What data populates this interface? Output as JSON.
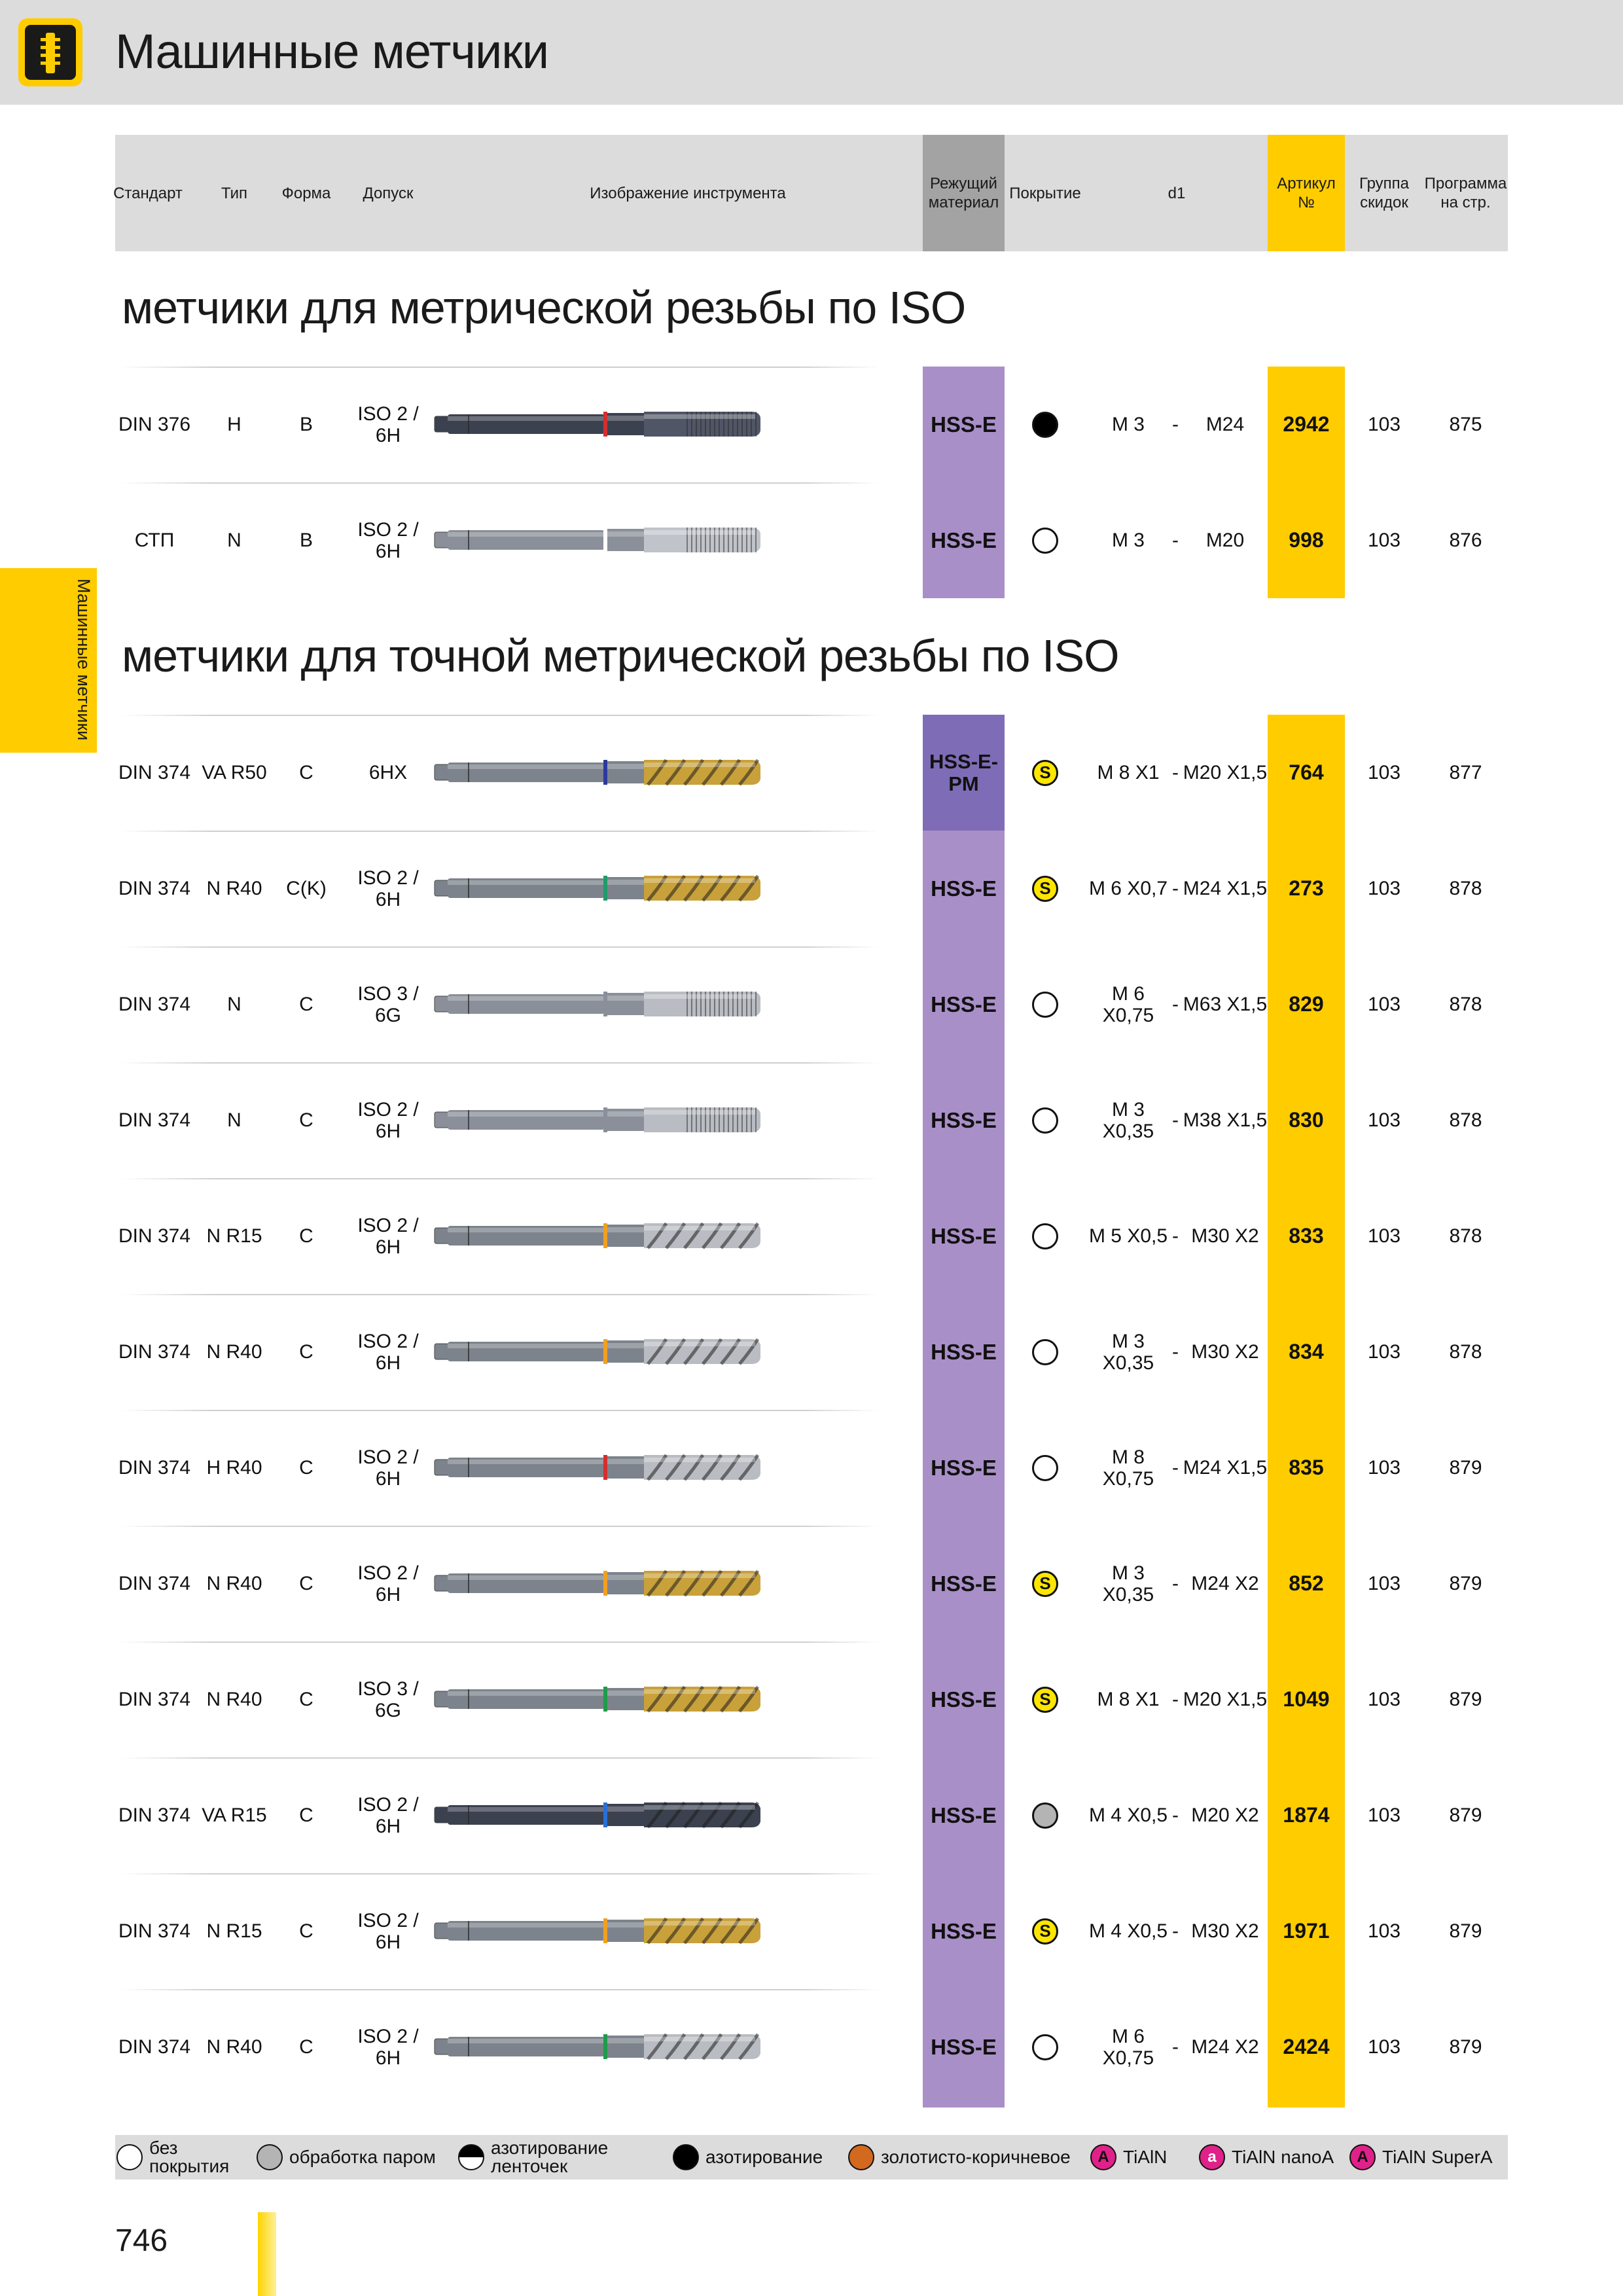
{
  "header": {
    "title": "Машинные метчики"
  },
  "side_tab": {
    "label": "Машинные метчики"
  },
  "table_header": {
    "standard": "Стандарт",
    "type": "Тип",
    "form": "Форма",
    "tolerance": "Допуск",
    "image": "Изображение инструмента",
    "material_1": "Режущий",
    "material_2": "материал",
    "coating": "Покрытие",
    "d1": "d1",
    "article_1": "Артикул",
    "article_2": "№",
    "discount_1": "Группа",
    "discount_2": "скидок",
    "program_1": "Программа",
    "program_2": "на стр."
  },
  "sections": [
    {
      "title": "метчики для метрической резьбы по  ISO"
    },
    {
      "title": "метчики для точной метрической резьбы по  ISO"
    }
  ],
  "rows": [
    {
      "standard": "DIN 376",
      "type": "H",
      "form": "B",
      "tol1": "ISO 2 /",
      "tol2": "6H",
      "material": "HSS-E",
      "coating": "black",
      "coating_letter": "",
      "d1_from": "M 3",
      "d1_from2": "",
      "dash": "-",
      "d1_to": "M24",
      "article": "2942",
      "group": "103",
      "page": "875",
      "tool_body": "#3c4150",
      "tool_ring": "#d32f2f",
      "tool_tip": "#505666",
      "tool_style": "straight"
    },
    {
      "standard": "СТП",
      "type": "N",
      "form": "B",
      "tol1": "ISO 2 /",
      "tol2": "6H",
      "material": "HSS-E",
      "coating": "none",
      "coating_letter": "",
      "d1_from": "M 3",
      "d1_from2": "",
      "dash": "-",
      "d1_to": "M20",
      "article": "998",
      "group": "103",
      "page": "876",
      "tool_body": "#8a8f99",
      "tool_ring": "#ffffff",
      "tool_tip": "#c0c4ca",
      "tool_style": "straight"
    },
    {
      "standard": "DIN 374",
      "type": "VA R50",
      "form": "C",
      "tol1": "6HX",
      "tol2": "",
      "material": "HSS-E-PM",
      "coating": "s",
      "coating_letter": "S",
      "d1_from": "M 8 X1",
      "d1_from2": "",
      "dash": "-",
      "d1_to": "M20 X1,5",
      "article": "764",
      "group": "103",
      "page": "877",
      "tool_body": "#7d838c",
      "tool_ring": "#2b3a9c",
      "tool_tip": "#c9a13a",
      "tool_style": "spiral"
    },
    {
      "standard": "DIN 374",
      "type": "N R40",
      "form": "C(K)",
      "tol1": "ISO 2 /",
      "tol2": "6H",
      "material": "HSS-E",
      "coating": "s",
      "coating_letter": "S",
      "d1_from": "M 6 X0,7",
      "d1_from2": "",
      "dash": "-",
      "d1_to": "M24 X1,5",
      "article": "273",
      "group": "103",
      "page": "878",
      "tool_body": "#7d838c",
      "tool_ring": "#1f9c6b",
      "tool_tip": "#c9a13a",
      "tool_style": "spiral"
    },
    {
      "standard": "DIN 374",
      "type": "N",
      "form": "C",
      "tol1": "ISO 3 /",
      "tol2": "6G",
      "material": "HSS-E",
      "coating": "none",
      "coating_letter": "",
      "d1_from": "M 6",
      "d1_from2": "X0,75",
      "dash": "-",
      "d1_to": "M63 X1,5",
      "article": "829",
      "group": "103",
      "page": "878",
      "tool_body": "#8a8f99",
      "tool_ring": "#8a8f99",
      "tool_tip": "#b9bcc2",
      "tool_style": "straight"
    },
    {
      "standard": "DIN 374",
      "type": "N",
      "form": "C",
      "tol1": "ISO 2 /",
      "tol2": "6H",
      "material": "HSS-E",
      "coating": "none",
      "coating_letter": "",
      "d1_from": "M 3",
      "d1_from2": "X0,35",
      "dash": "-",
      "d1_to": "M38 X1,5",
      "article": "830",
      "group": "103",
      "page": "878",
      "tool_body": "#8a8f99",
      "tool_ring": "#8a8f99",
      "tool_tip": "#b9bcc2",
      "tool_style": "straight"
    },
    {
      "standard": "DIN 374",
      "type": "N R15",
      "form": "C",
      "tol1": "ISO 2 /",
      "tol2": "6H",
      "material": "HSS-E",
      "coating": "none",
      "coating_letter": "",
      "d1_from": "M 5 X0,5",
      "d1_from2": "",
      "dash": "-",
      "d1_to": "M30 X2",
      "article": "833",
      "group": "103",
      "page": "878",
      "tool_body": "#7d838c",
      "tool_ring": "#f0a020",
      "tool_tip": "#b9bcc2",
      "tool_style": "spiral"
    },
    {
      "standard": "DIN 374",
      "type": "N R40",
      "form": "C",
      "tol1": "ISO 2 /",
      "tol2": "6H",
      "material": "HSS-E",
      "coating": "none",
      "coating_letter": "",
      "d1_from": "M 3",
      "d1_from2": "X0,35",
      "dash": "-",
      "d1_to": "M30 X2",
      "article": "834",
      "group": "103",
      "page": "878",
      "tool_body": "#7d838c",
      "tool_ring": "#f0a020",
      "tool_tip": "#b9bcc2",
      "tool_style": "spiral"
    },
    {
      "standard": "DIN 374",
      "type": "H R40",
      "form": "C",
      "tol1": "ISO 2 /",
      "tol2": "6H",
      "material": "HSS-E",
      "coating": "none",
      "coating_letter": "",
      "d1_from": "M 8",
      "d1_from2": "X0,75",
      "dash": "-",
      "d1_to": "M24 X1,5",
      "article": "835",
      "group": "103",
      "page": "879",
      "tool_body": "#7d838c",
      "tool_ring": "#d32f2f",
      "tool_tip": "#b9bcc2",
      "tool_style": "spiral"
    },
    {
      "standard": "DIN 374",
      "type": "N R40",
      "form": "C",
      "tol1": "ISO 2 /",
      "tol2": "6H",
      "material": "HSS-E",
      "coating": "s",
      "coating_letter": "S",
      "d1_from": "M 3",
      "d1_from2": "X0,35",
      "dash": "-",
      "d1_to": "M24 X2",
      "article": "852",
      "group": "103",
      "page": "879",
      "tool_body": "#7d838c",
      "tool_ring": "#f0a020",
      "tool_tip": "#c9a13a",
      "tool_style": "spiral"
    },
    {
      "standard": "DIN 374",
      "type": "N R40",
      "form": "C",
      "tol1": "ISO 3 /",
      "tol2": "6G",
      "material": "HSS-E",
      "coating": "s",
      "coating_letter": "S",
      "d1_from": "M 8 X1",
      "d1_from2": "",
      "dash": "-",
      "d1_to": "M20 X1,5",
      "article": "1049",
      "group": "103",
      "page": "879",
      "tool_body": "#7d838c",
      "tool_ring": "#1f9c4b",
      "tool_tip": "#c9a13a",
      "tool_style": "spiral"
    },
    {
      "standard": "DIN 374",
      "type": "VA R15",
      "form": "C",
      "tol1": "ISO 2 /",
      "tol2": "6H",
      "material": "HSS-E",
      "coating": "steam",
      "coating_letter": "",
      "d1_from": "M 4 X0,5",
      "d1_from2": "",
      "dash": "-",
      "d1_to": "M20 X2",
      "article": "1874",
      "group": "103",
      "page": "879",
      "tool_body": "#3c4150",
      "tool_ring": "#2a6fd6",
      "tool_tip": "#3c4150",
      "tool_style": "spiral"
    },
    {
      "standard": "DIN 374",
      "type": "N R15",
      "form": "C",
      "tol1": "ISO 2 /",
      "tol2": "6H",
      "material": "HSS-E",
      "coating": "s",
      "coating_letter": "S",
      "d1_from": "M 4 X0,5",
      "d1_from2": "",
      "dash": "-",
      "d1_to": "M30 X2",
      "article": "1971",
      "group": "103",
      "page": "879",
      "tool_body": "#7d838c",
      "tool_ring": "#f0a020",
      "tool_tip": "#c9a13a",
      "tool_style": "spiral"
    },
    {
      "standard": "DIN 374",
      "type": "N R40",
      "form": "C",
      "tol1": "ISO 2 /",
      "tol2": "6H",
      "material": "HSS-E",
      "coating": "none",
      "coating_letter": "",
      "d1_from": "M 6",
      "d1_from2": "X0,75",
      "dash": "-",
      "d1_to": "M24 X2",
      "article": "2424",
      "group": "103",
      "page": "879",
      "tool_body": "#7d838c",
      "tool_ring": "#1f9c4b",
      "tool_tip": "#b9bcc2",
      "tool_style": "spiral"
    }
  ],
  "legend": [
    {
      "name": "no-coating",
      "label1": "без",
      "label2": "покрытия",
      "color": "#ffffff",
      "letter": "",
      "letter_color": "",
      "half": false
    },
    {
      "name": "steam",
      "label1": "обработка паром",
      "label2": "",
      "color": "#b4b4b4",
      "letter": "",
      "letter_color": "",
      "half": false
    },
    {
      "name": "band-nitriding",
      "label1": "азотирование",
      "label2": "ленточек",
      "color": "#ffffff",
      "letter": "",
      "letter_color": "",
      "half": true
    },
    {
      "name": "nitriding",
      "label1": "азотирование",
      "label2": "",
      "color": "#000000",
      "letter": "",
      "letter_color": "",
      "half": false
    },
    {
      "name": "gold-brown",
      "label1": "золотисто-коричневое",
      "label2": "",
      "color": "#d2691e",
      "letter": "",
      "letter_color": "",
      "half": false
    },
    {
      "name": "tialn",
      "label1": "TiAlN",
      "label2": "",
      "color": "#e0218a",
      "letter": "A",
      "letter_color": "#111111",
      "half": false
    },
    {
      "name": "tialn-nanoa",
      "label1": "TiAlN nanoA",
      "label2": "",
      "color": "#e0218a",
      "letter": "a",
      "letter_color": "#ffffff",
      "half": false
    },
    {
      "name": "tialn-supera",
      "label1": "TiAlN SuperA",
      "label2": "",
      "color": "#e0218a",
      "letter": "A",
      "letter_color": "#111111",
      "half": false
    }
  ],
  "page_number": "746"
}
